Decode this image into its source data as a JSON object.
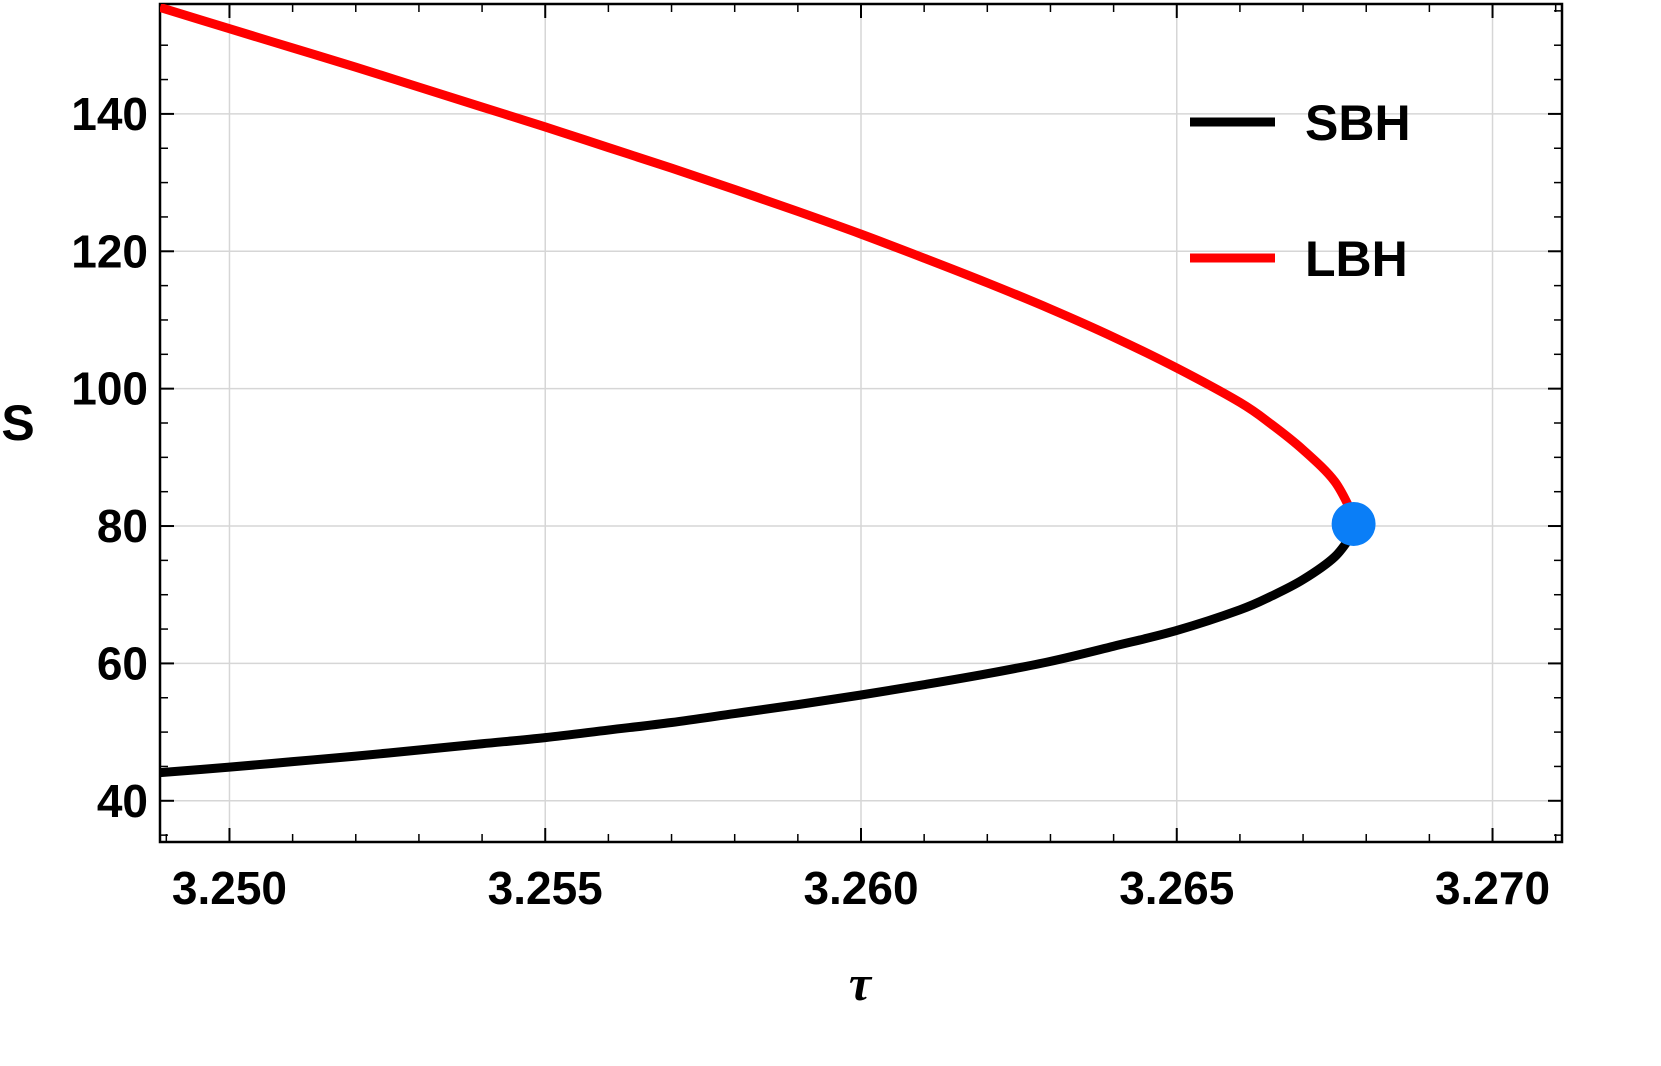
{
  "chart_data": {
    "type": "line",
    "title": "",
    "xlabel": "τ",
    "ylabel": "S",
    "xlim": [
      3.2489,
      3.2711
    ],
    "ylim": [
      34,
      156
    ],
    "grid": true,
    "x_ticks": [
      {
        "value": 3.25,
        "label": "3.250"
      },
      {
        "value": 3.255,
        "label": "3.255"
      },
      {
        "value": 3.26,
        "label": "3.260"
      },
      {
        "value": 3.265,
        "label": "3.265"
      },
      {
        "value": 3.27,
        "label": "3.270"
      }
    ],
    "y_ticks": [
      {
        "value": 40,
        "label": "40"
      },
      {
        "value": 60,
        "label": "60"
      },
      {
        "value": 80,
        "label": "80"
      },
      {
        "value": 100,
        "label": "100"
      },
      {
        "value": 120,
        "label": "120"
      },
      {
        "value": 140,
        "label": "140"
      }
    ],
    "legend_position": "top-right",
    "series": [
      {
        "name": "SBH",
        "color": "#000000",
        "points": [
          [
            3.2489,
            44.1
          ],
          [
            3.25,
            44.9
          ],
          [
            3.251,
            45.7
          ],
          [
            3.252,
            46.5
          ],
          [
            3.253,
            47.4
          ],
          [
            3.254,
            48.3
          ],
          [
            3.255,
            49.2
          ],
          [
            3.256,
            50.3
          ],
          [
            3.257,
            51.4
          ],
          [
            3.258,
            52.7
          ],
          [
            3.259,
            54.0
          ],
          [
            3.26,
            55.4
          ],
          [
            3.261,
            56.9
          ],
          [
            3.262,
            58.5
          ],
          [
            3.263,
            60.3
          ],
          [
            3.264,
            62.5
          ],
          [
            3.265,
            64.8
          ],
          [
            3.266,
            67.8
          ],
          [
            3.2665,
            69.8
          ],
          [
            3.267,
            72.2
          ],
          [
            3.2675,
            75.5
          ],
          [
            3.2678,
            79.1
          ]
        ]
      },
      {
        "name": "LBH",
        "color": "#ff0000",
        "points": [
          [
            3.2678,
            81.4
          ],
          [
            3.2675,
            86.5
          ],
          [
            3.267,
            91.1
          ],
          [
            3.2665,
            94.8
          ],
          [
            3.266,
            98.0
          ],
          [
            3.265,
            103.0
          ],
          [
            3.264,
            107.5
          ],
          [
            3.263,
            111.6
          ],
          [
            3.262,
            115.4
          ],
          [
            3.261,
            119.0
          ],
          [
            3.26,
            122.5
          ],
          [
            3.259,
            125.8
          ],
          [
            3.258,
            129.0
          ],
          [
            3.257,
            132.1
          ],
          [
            3.256,
            135.1
          ],
          [
            3.255,
            138.1
          ],
          [
            3.254,
            141.0
          ],
          [
            3.253,
            143.9
          ],
          [
            3.252,
            146.8
          ],
          [
            3.251,
            149.6
          ],
          [
            3.25,
            152.4
          ],
          [
            3.2489,
            155.5
          ]
        ]
      }
    ],
    "marker": {
      "x": 3.2678,
      "y": 80.3,
      "color": "#0a7ef7"
    }
  }
}
